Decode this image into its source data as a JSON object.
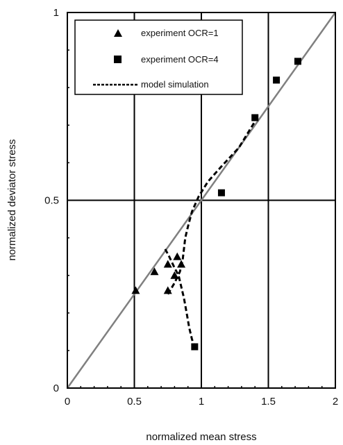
{
  "chart_data": {
    "type": "scatter",
    "title": "",
    "xlabel": "normalized mean stress",
    "ylabel": "normalized deviator stress",
    "xlim": [
      0,
      2
    ],
    "ylim": [
      0,
      1
    ],
    "grid": true,
    "legend_position": "top-left",
    "x_ticks": [
      "0",
      "0.5",
      "1",
      "1.5",
      "2"
    ],
    "y_ticks": [
      "0",
      "0.5",
      "1"
    ],
    "reference_line": {
      "x": [
        0,
        2
      ],
      "y": [
        0,
        1
      ]
    },
    "series": [
      {
        "name": "experiment OCR=1",
        "marker": "triangle",
        "color": "#000000",
        "x": [
          0.51,
          0.65,
          0.75,
          0.8,
          0.82,
          0.85,
          0.75
        ],
        "y": [
          0.26,
          0.31,
          0.33,
          0.3,
          0.35,
          0.33,
          0.26
        ]
      },
      {
        "name": "experiment OCR=4",
        "marker": "square",
        "color": "#000000",
        "x": [
          0.95,
          1.15,
          1.4,
          1.56,
          1.72
        ],
        "y": [
          0.11,
          0.52,
          0.72,
          0.82,
          0.87
        ]
      },
      {
        "name": "model simulation",
        "line": "dashed",
        "color": "#000000",
        "branches": [
          {
            "x": [
              0.73,
              0.76,
              0.8,
              0.83,
              0.85,
              0.87,
              0.89,
              0.91,
              0.93,
              0.95
            ],
            "y": [
              0.37,
              0.35,
              0.32,
              0.3,
              0.27,
              0.24,
              0.2,
              0.16,
              0.13,
              0.11
            ]
          },
          {
            "x": [
              0.75,
              0.8,
              0.84,
              0.86,
              0.87,
              0.88,
              0.9,
              0.93,
              0.98,
              1.05,
              1.15,
              1.28,
              1.4
            ],
            "y": [
              0.25,
              0.28,
              0.31,
              0.34,
              0.37,
              0.4,
              0.43,
              0.47,
              0.51,
              0.55,
              0.59,
              0.64,
              0.71
            ]
          }
        ]
      }
    ]
  }
}
